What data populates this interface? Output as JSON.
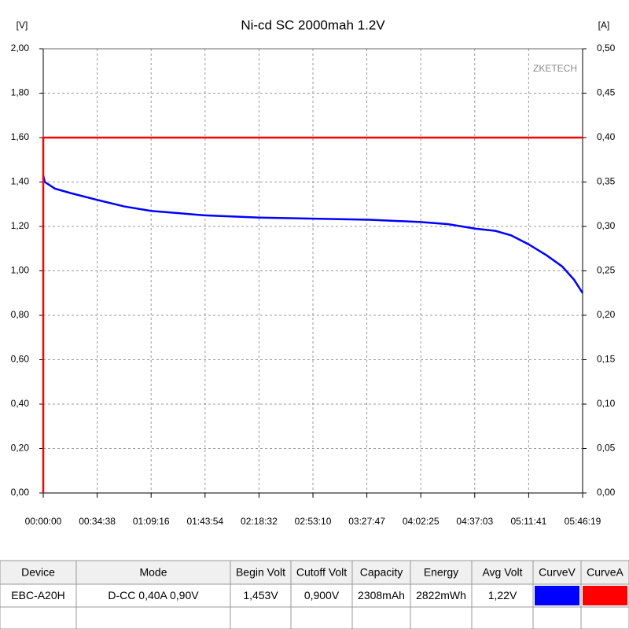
{
  "chart_data": {
    "type": "line",
    "title": "Ni-cd SC 2000mah 1.2V",
    "ylabel": "[V]",
    "y2label": "[A]",
    "watermark": "ZKETECH",
    "xlim": [
      0,
      20779
    ],
    "xticks": [
      {
        "value": 0,
        "label": "00:00:00"
      },
      {
        "value": 2078,
        "label": "00:34:38"
      },
      {
        "value": 4156,
        "label": "01:09:16"
      },
      {
        "value": 6234,
        "label": "01:43:54"
      },
      {
        "value": 8312,
        "label": "02:18:32"
      },
      {
        "value": 10390,
        "label": "02:53:10"
      },
      {
        "value": 12467,
        "label": "03:27:47"
      },
      {
        "value": 14545,
        "label": "04:02:25"
      },
      {
        "value": 16623,
        "label": "04:37:03"
      },
      {
        "value": 18701,
        "label": "05:11:41"
      },
      {
        "value": 20779,
        "label": "05:46:19"
      }
    ],
    "ylim": [
      0,
      2
    ],
    "yticks": [
      {
        "value": 0,
        "label": "0,00"
      },
      {
        "value": 0.2,
        "label": "0,20"
      },
      {
        "value": 0.4,
        "label": "0,40"
      },
      {
        "value": 0.6,
        "label": "0,60"
      },
      {
        "value": 0.8,
        "label": "0,80"
      },
      {
        "value": 1,
        "label": "1,00"
      },
      {
        "value": 1.2,
        "label": "1,20"
      },
      {
        "value": 1.4,
        "label": "1,40"
      },
      {
        "value": 1.6,
        "label": "1,60"
      },
      {
        "value": 1.8,
        "label": "1,80"
      },
      {
        "value": 2,
        "label": "2,00"
      }
    ],
    "y2lim": [
      0,
      0.5
    ],
    "y2ticks": [
      {
        "value": 0,
        "label": "0,00"
      },
      {
        "value": 0.05,
        "label": "0,05"
      },
      {
        "value": 0.1,
        "label": "0,10"
      },
      {
        "value": 0.15,
        "label": "0,15"
      },
      {
        "value": 0.2,
        "label": "0,20"
      },
      {
        "value": 0.25,
        "label": "0,25"
      },
      {
        "value": 0.3,
        "label": "0,30"
      },
      {
        "value": 0.35,
        "label": "0,35"
      },
      {
        "value": 0.4,
        "label": "0,40"
      },
      {
        "value": 0.45,
        "label": "0,45"
      },
      {
        "value": 0.5,
        "label": "0,50"
      }
    ],
    "grid": true,
    "series": [
      {
        "name": "CurveV",
        "color": "#0000ff",
        "x": [
          0,
          61,
          454,
          1060,
          2060,
          3120,
          4150,
          5180,
          6210,
          8330,
          10450,
          12570,
          14540,
          15600,
          16660,
          17420,
          18020,
          18690,
          19390,
          19990,
          20450,
          20779
        ],
        "values": [
          1.43,
          1.4,
          1.37,
          1.35,
          1.32,
          1.29,
          1.27,
          1.26,
          1.25,
          1.24,
          1.235,
          1.23,
          1.22,
          1.21,
          1.19,
          1.18,
          1.16,
          1.12,
          1.07,
          1.02,
          0.96,
          0.9
        ]
      },
      {
        "name": "CurveA",
        "color": "#ff0000",
        "axis": "y2",
        "x": [
          0,
          0,
          20779
        ],
        "values": [
          0,
          0.4,
          0.4
        ]
      }
    ]
  },
  "table": {
    "columns": [
      "Device",
      "Mode",
      "Begin Volt",
      "Cutoff Volt",
      "Capacity",
      "Energy",
      "Avg Volt",
      "CurveV",
      "CurveA"
    ],
    "rows": [
      [
        "EBC-A20H",
        "D-CC  0,40A  0,90V",
        "1,453V",
        "0,900V",
        "2308mAh",
        "2822mWh",
        "1,22V"
      ]
    ]
  }
}
